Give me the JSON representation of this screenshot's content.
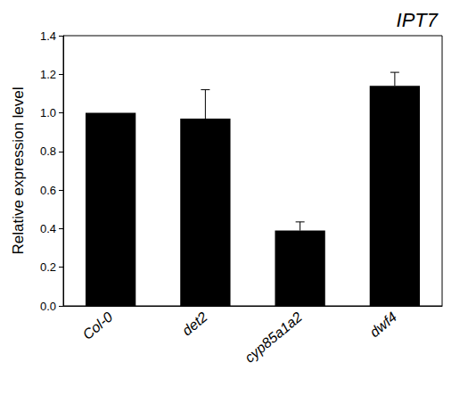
{
  "chart_data": {
    "type": "bar",
    "title": "IPT7",
    "y_label": "Relative expression level",
    "categories": [
      "Col-0",
      "det2",
      "cyp85a1a2",
      "dwf4"
    ],
    "values": [
      1.0,
      0.97,
      0.39,
      1.14
    ],
    "errors": [
      0,
      0.15,
      0.045,
      0.07
    ],
    "color": "#000000",
    "ylim": [
      0,
      1.4
    ],
    "yticks": [
      {
        "value": 0,
        "label": "0.0"
      },
      0.2,
      0.4,
      0.6,
      0.8,
      {
        "value": 1,
        "label": "1.0"
      },
      1.2,
      1.4
    ],
    "grid": false
  }
}
